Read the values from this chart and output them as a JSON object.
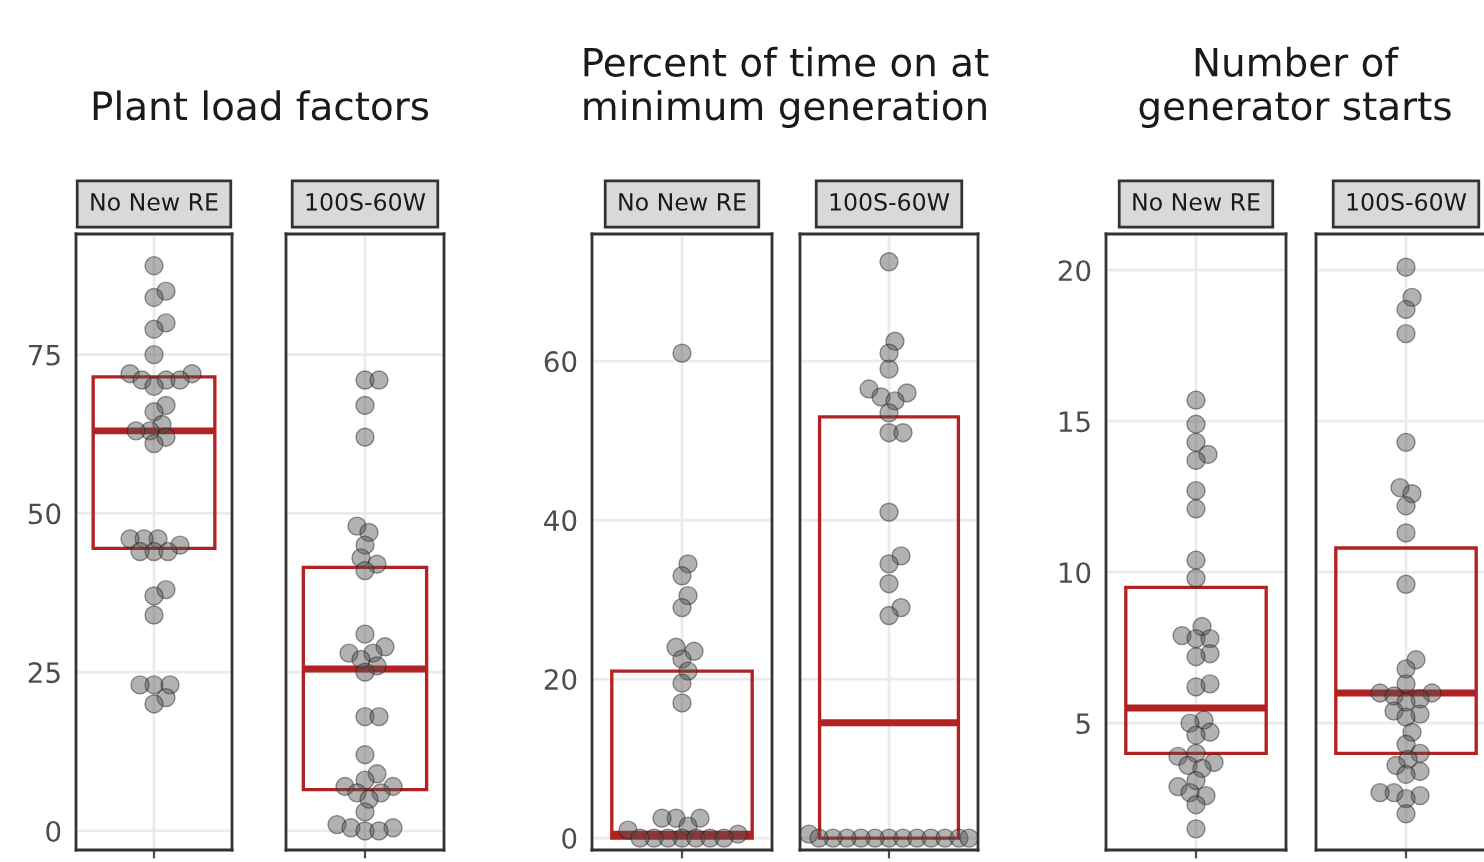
{
  "chart_data": [
    {
      "type": "box",
      "title": "Plant load factors",
      "categories": [
        "No New RE",
        "100S-60W"
      ],
      "color": "#b22222",
      "boxes": [
        {
          "low": 44.5,
          "q1": 44.5,
          "median": 63,
          "q3": 71.5,
          "high": 71.5
        },
        {
          "low": 6.5,
          "q1": 6.5,
          "median": 25.5,
          "q3": 41.5,
          "high": 41.5
        }
      ],
      "ylim": [
        -3,
        94
      ],
      "yticks": [
        0,
        25,
        50,
        75
      ],
      "grid": true,
      "series": [
        {
          "type": "scatter",
          "color": "#555555",
          "x": [
            "No New RE",
            "No New RE",
            "No New RE",
            "No New RE",
            "No New RE",
            "No New RE",
            "No New RE",
            "No New RE",
            "No New RE",
            "No New RE",
            "No New RE",
            "No New RE",
            "No New RE",
            "No New RE",
            "No New RE",
            "No New RE",
            "No New RE",
            "No New RE",
            "No New RE",
            "No New RE",
            "No New RE",
            "No New RE",
            "No New RE",
            "No New RE",
            "No New RE",
            "No New RE",
            "No New RE",
            "No New RE",
            "No New RE",
            "No New RE",
            "No New RE",
            "No New RE",
            "No New RE",
            "No New RE"
          ],
          "values": [
            89,
            85,
            84,
            80,
            79,
            75,
            72,
            72,
            71,
            71,
            71,
            70,
            67,
            66,
            64,
            63,
            63,
            62,
            61,
            46,
            46,
            46,
            45,
            44,
            44,
            44,
            38,
            37,
            34,
            23,
            23,
            23,
            21,
            20
          ]
        },
        {
          "type": "scatter",
          "color": "#555555",
          "x": [
            "100S-60W",
            "100S-60W",
            "100S-60W",
            "100S-60W",
            "100S-60W",
            "100S-60W",
            "100S-60W",
            "100S-60W",
            "100S-60W",
            "100S-60W",
            "100S-60W",
            "100S-60W",
            "100S-60W",
            "100S-60W",
            "100S-60W",
            "100S-60W",
            "100S-60W",
            "100S-60W",
            "100S-60W",
            "100S-60W",
            "100S-60W",
            "100S-60W",
            "100S-60W",
            "100S-60W",
            "100S-60W",
            "100S-60W",
            "100S-60W",
            "100S-60W",
            "100S-60W",
            "100S-60W",
            "100S-60W",
            "100S-60W",
            "100S-60W"
          ],
          "values": [
            71,
            71,
            67,
            62,
            48,
            47,
            45,
            43,
            42,
            41,
            31,
            29,
            28,
            28,
            27,
            26,
            25,
            18,
            18,
            12,
            9,
            8,
            7,
            7,
            6,
            6,
            5,
            3,
            1,
            0.5,
            0.5,
            0,
            0
          ]
        }
      ]
    },
    {
      "type": "box",
      "title": "Percent of time on at minimum generation",
      "categories": [
        "No New RE",
        "100S-60W"
      ],
      "color": "#b22222",
      "boxes": [
        {
          "low": 0,
          "q1": 0,
          "median": 0.5,
          "q3": 21,
          "high": 21
        },
        {
          "low": 0,
          "q1": 0,
          "median": 14.5,
          "q3": 53,
          "high": 53
        }
      ],
      "ylim": [
        -1.5,
        76
      ],
      "yticks": [
        0,
        20,
        40,
        60
      ],
      "grid": true,
      "series": [
        {
          "type": "scatter",
          "color": "#555555",
          "x": [
            "No New RE",
            "No New RE",
            "No New RE",
            "No New RE",
            "No New RE",
            "No New RE",
            "No New RE",
            "No New RE",
            "No New RE",
            "No New RE",
            "No New RE",
            "No New RE",
            "No New RE",
            "No New RE",
            "No New RE",
            "No New RE",
            "No New RE",
            "No New RE",
            "No New RE",
            "No New RE",
            "No New RE",
            "No New RE",
            "No New RE",
            "No New RE"
          ],
          "values": [
            61,
            34.5,
            33,
            30.5,
            29,
            24,
            23.5,
            22.5,
            21,
            19.5,
            17,
            2.5,
            2.5,
            2.5,
            1.5,
            1,
            0.5,
            0,
            0,
            0,
            0,
            0,
            0,
            0
          ]
        },
        {
          "type": "scatter",
          "color": "#555555",
          "x": [
            "100S-60W",
            "100S-60W",
            "100S-60W",
            "100S-60W",
            "100S-60W",
            "100S-60W",
            "100S-60W",
            "100S-60W",
            "100S-60W",
            "100S-60W",
            "100S-60W",
            "100S-60W",
            "100S-60W",
            "100S-60W",
            "100S-60W",
            "100S-60W",
            "100S-60W",
            "100S-60W",
            "100S-60W",
            "100S-60W",
            "100S-60W",
            "100S-60W",
            "100S-60W",
            "100S-60W",
            "100S-60W",
            "100S-60W",
            "100S-60W",
            "100S-60W",
            "100S-60W",
            "100S-60W"
          ],
          "values": [
            72.5,
            62.5,
            61,
            59,
            56.5,
            56,
            55.5,
            55,
            53.5,
            51,
            51,
            41,
            35.5,
            34.5,
            32,
            29,
            28,
            0.5,
            0,
            0,
            0,
            0,
            0,
            0,
            0,
            0,
            0,
            0,
            0,
            0
          ]
        }
      ]
    },
    {
      "type": "box",
      "title": "Number of generator starts",
      "categories": [
        "No New RE",
        "100S-60W"
      ],
      "color": "#b22222",
      "boxes": [
        {
          "low": 4,
          "q1": 4,
          "median": 5.5,
          "q3": 9.5,
          "high": 9.5
        },
        {
          "low": 4,
          "q1": 4,
          "median": 6,
          "q3": 10.8,
          "high": 10.8
        }
      ],
      "ylim": [
        0.8,
        21.2
      ],
      "yticks": [
        5,
        10,
        15,
        20
      ],
      "grid": true,
      "series": [
        {
          "type": "scatter",
          "color": "#555555",
          "x": [
            "No New RE",
            "No New RE",
            "No New RE",
            "No New RE",
            "No New RE",
            "No New RE",
            "No New RE",
            "No New RE",
            "No New RE",
            "No New RE",
            "No New RE",
            "No New RE",
            "No New RE",
            "No New RE",
            "No New RE",
            "No New RE",
            "No New RE",
            "No New RE",
            "No New RE",
            "No New RE",
            "No New RE",
            "No New RE",
            "No New RE",
            "No New RE",
            "No New RE",
            "No New RE",
            "No New RE",
            "No New RE",
            "No New RE",
            "No New RE",
            "No New RE",
            "No New RE"
          ],
          "values": [
            15.7,
            14.9,
            14.3,
            13.9,
            13.7,
            12.7,
            12.1,
            10.4,
            9.8,
            8.2,
            7.9,
            7.8,
            7.8,
            7.3,
            7.2,
            6.3,
            6.2,
            5.1,
            5.0,
            4.7,
            4.6,
            4.0,
            3.9,
            3.7,
            3.6,
            3.5,
            3.1,
            2.9,
            2.7,
            2.6,
            2.3,
            1.5
          ]
        },
        {
          "type": "scatter",
          "color": "#555555",
          "x": [
            "100S-60W",
            "100S-60W",
            "100S-60W",
            "100S-60W",
            "100S-60W",
            "100S-60W",
            "100S-60W",
            "100S-60W",
            "100S-60W",
            "100S-60W",
            "100S-60W",
            "100S-60W",
            "100S-60W",
            "100S-60W",
            "100S-60W",
            "100S-60W",
            "100S-60W",
            "100S-60W",
            "100S-60W",
            "100S-60W",
            "100S-60W",
            "100S-60W",
            "100S-60W",
            "100S-60W",
            "100S-60W",
            "100S-60W",
            "100S-60W",
            "100S-60W",
            "100S-60W",
            "100S-60W",
            "100S-60W",
            "100S-60W",
            "100S-60W"
          ],
          "values": [
            20.1,
            19.1,
            18.7,
            17.9,
            14.3,
            12.8,
            12.6,
            12.2,
            11.3,
            9.6,
            7.1,
            6.8,
            6.3,
            6.0,
            6.0,
            5.9,
            5.8,
            5.7,
            5.4,
            5.3,
            5.2,
            4.7,
            4.3,
            4.0,
            3.8,
            3.6,
            3.4,
            3.3,
            2.7,
            2.7,
            2.6,
            2.5,
            2.0
          ]
        }
      ]
    }
  ]
}
